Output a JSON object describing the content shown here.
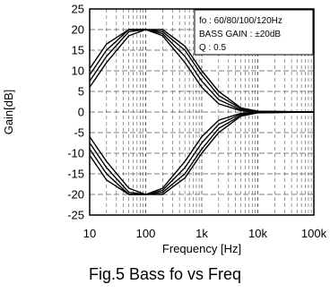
{
  "caption": "Fig.5 Bass fo vs Freq",
  "chart_data": {
    "type": "line",
    "xlabel": "Frequency [Hz]",
    "ylabel": "Gain[dB]",
    "xscale": "log",
    "xlim": [
      10,
      100000
    ],
    "ylim": [
      -25,
      25
    ],
    "x_ticks": [
      10,
      100,
      1000,
      10000,
      100000
    ],
    "x_tick_labels": [
      "10",
      "100",
      "1k",
      "10k",
      "100k"
    ],
    "y_ticks": [
      25,
      20,
      15,
      10,
      5,
      0,
      -5,
      -10,
      -15,
      -20,
      -25
    ],
    "y_tick_labels": [
      "25",
      "20",
      "15",
      "10",
      "5",
      "0",
      "-5",
      "-10",
      "-15",
      "-20",
      "-25"
    ],
    "grid": "dashed",
    "legend_placement": "top-right",
    "annotation": [
      "fo : 60/80/100/120Hz",
      "BASS GAIN : ±20dB",
      "Q : 0.5"
    ],
    "x": [
      10,
      20,
      50,
      100,
      200,
      500,
      1000,
      2000,
      5000,
      10000,
      100000
    ],
    "series": [
      {
        "values": [
          6.0,
          12.0,
          18.5,
          20.0,
          18.5,
          12.0,
          6.0,
          2.0,
          0.3,
          0.0,
          0.0
        ]
      },
      {
        "values": [
          7.5,
          13.5,
          19.5,
          20.0,
          19.0,
          13.5,
          7.5,
          3.0,
          0.5,
          0.1,
          0.0
        ]
      },
      {
        "values": [
          9.0,
          15.0,
          20.0,
          20.0,
          19.5,
          15.0,
          9.0,
          4.0,
          0.8,
          0.1,
          0.0
        ]
      },
      {
        "values": [
          10.5,
          16.5,
          20.0,
          20.0,
          20.0,
          16.0,
          10.0,
          5.0,
          1.0,
          0.2,
          0.0
        ]
      },
      {
        "values": [
          -6.0,
          -12.0,
          -18.5,
          -20.0,
          -18.5,
          -12.0,
          -6.0,
          -2.0,
          -0.3,
          0.0,
          0.0
        ]
      },
      {
        "values": [
          -7.5,
          -13.5,
          -19.5,
          -20.0,
          -19.0,
          -13.5,
          -7.5,
          -3.0,
          -0.5,
          -0.1,
          0.0
        ]
      },
      {
        "values": [
          -9.0,
          -15.0,
          -20.0,
          -20.0,
          -19.5,
          -15.0,
          -9.0,
          -4.0,
          -0.8,
          -0.1,
          0.0
        ]
      },
      {
        "values": [
          -10.5,
          -16.5,
          -20.0,
          -20.0,
          -20.0,
          -16.0,
          -10.0,
          -5.0,
          -1.0,
          -0.2,
          0.0
        ]
      }
    ]
  }
}
